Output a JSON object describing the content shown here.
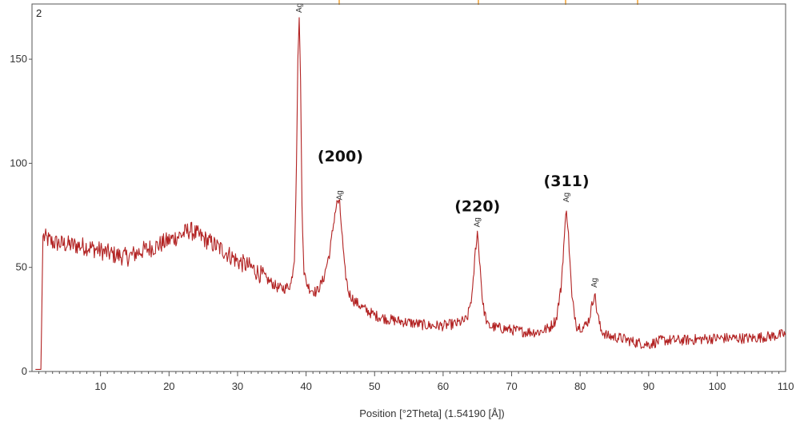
{
  "chart_data": {
    "type": "line",
    "panel_label": "2",
    "xlabel": "Position [°2Theta] (1.54190 [Å])",
    "ylabel": "",
    "xlim": [
      0,
      110
    ],
    "ylim": [
      0,
      175
    ],
    "x_ticks": [
      10,
      20,
      30,
      40,
      50,
      60,
      70,
      80,
      90,
      100,
      110
    ],
    "y_ticks": [
      0,
      50,
      100,
      150
    ],
    "grid": false,
    "line_color": "#b22222",
    "series": [
      {
        "x": [
          0.5,
          1.3,
          1.6,
          2,
          3,
          5,
          8,
          10,
          12,
          14,
          16,
          18,
          20,
          22,
          23,
          24,
          26,
          28,
          30,
          32,
          34,
          36,
          37,
          37.8,
          38.3,
          38.6,
          38.8,
          39.0,
          39.2,
          39.4,
          39.7,
          40.0,
          40.5,
          41.5,
          42.5,
          43.5,
          44.2,
          44.6,
          44.9,
          45.2,
          45.6,
          46.2,
          47,
          48.5,
          50,
          52,
          54,
          56,
          58,
          60,
          62,
          63.5,
          64.3,
          64.7,
          65.0,
          65.3,
          65.8,
          66.5,
          68,
          70,
          72,
          74,
          75.5,
          76.5,
          77.2,
          77.7,
          78.0,
          78.3,
          78.8,
          79.5,
          80.5,
          81.3,
          81.8,
          82.1,
          82.4,
          83,
          84,
          86,
          88,
          90,
          92,
          95,
          100,
          105,
          108,
          110
        ],
        "y": [
          1,
          1,
          65,
          64,
          62,
          61,
          60,
          58,
          56,
          55,
          58,
          60,
          63,
          66,
          68,
          66,
          62,
          58,
          53,
          50,
          45,
          40,
          40,
          42,
          55,
          100,
          150,
          170,
          140,
          80,
          48,
          43,
          40,
          38,
          44,
          58,
          76,
          82,
          80,
          68,
          50,
          38,
          34,
          30,
          27,
          25,
          24,
          23,
          22,
          22,
          23,
          25,
          38,
          58,
          67,
          55,
          32,
          22,
          21,
          20,
          19,
          19,
          21,
          25,
          40,
          65,
          79,
          65,
          35,
          22,
          21,
          25,
          33,
          38,
          30,
          20,
          17,
          16,
          14,
          13,
          15,
          15,
          16,
          16,
          17,
          18
        ]
      }
    ],
    "annotations": [
      {
        "text": "(200)",
        "x": 45,
        "y": 101
      },
      {
        "text": "(220)",
        "x": 65,
        "y": 77
      },
      {
        "text": "(311)",
        "x": 78,
        "y": 89
      }
    ],
    "peak_tags": [
      {
        "text": "Ag",
        "x": 39.0
      },
      {
        "text": "Ag",
        "x": 44.9
      },
      {
        "text": "Ag",
        "x": 65.0
      },
      {
        "text": "Ag",
        "x": 78.0
      },
      {
        "text": "Ag",
        "x": 82.1
      }
    ]
  }
}
